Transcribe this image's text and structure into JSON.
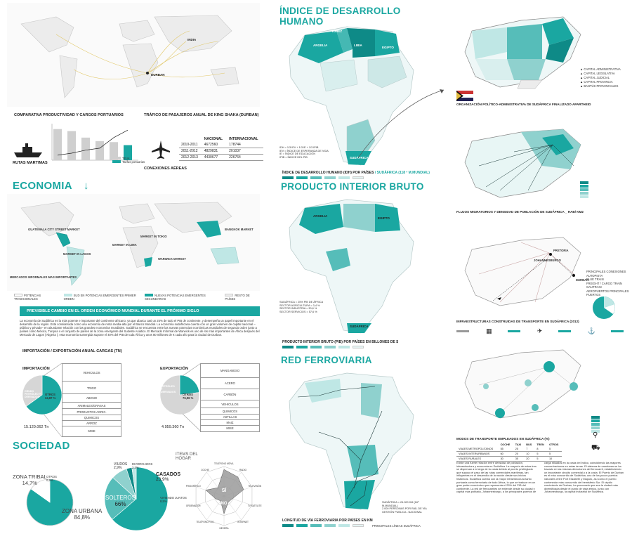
{
  "left": {
    "map_labels": {
      "india": "INDIA",
      "durban": "DURBAN"
    },
    "port_chart": {
      "title": "COMPARATIVA PRODUCTIVIDAD Y CARGOS PORTUARIOS",
      "caption": "RUTAS MARTIMAS",
      "y_unit": "TEUs/h",
      "legend": [
        "TEUs",
        "Tarifas portuarias"
      ]
    },
    "air_table": {
      "title": "TRÁFICO DE PASAJEROS ANUAL DE KING SHAKA (DURBAN)",
      "caption": "CONEXIONES AÉREAS",
      "headers": [
        "",
        "NACIONAL",
        "INTERNACIONAL"
      ],
      "rows": [
        [
          "2010-2011",
          "4672560",
          "178744"
        ],
        [
          "2011-2012",
          "4829831",
          "201037"
        ],
        [
          "2012-2013",
          "4430677",
          "226764"
        ]
      ]
    },
    "economia": {
      "title": "ECONOMIA",
      "arrow": "↓",
      "markets": [
        "GUATEMALA CITY STREET MARKET",
        "MARKET IN LAGOS",
        "MARKET IN LIMA",
        "MARKET IN TOKIO",
        "BANGKOK MARKET",
        "WARWICK MARKET"
      ],
      "footnote": "MERCADOS INFORMALES MAS IMPORTANTES",
      "legend": [
        "POTENCIAS TRADICIONALES",
        "SUD EN POTENCIAS EMERGENTES PRIMER ORDEN",
        "NUEVAS POTENCIAS EMERGENTES SECUNDARIAS",
        "RESTO DE PAÍSES"
      ],
      "banner": "PREVISIBLE CAMBIO EN EL ORDEN ECONÓMICO MUNDIAL DURANTE EL PRÓXIMO SIGLO",
      "text": "La economía de Sudáfrica es la más potente e importante del continente africano, ya que abarca casi un 25% de todo el PIB de continente, y desempeña un papel importante en el desarrollo de la región. Está considerada como una economía de renta media-alta por el Banco Mundial. La economía sudafricana cuenta con un gran volumen de capital nacional –público y privado– en abundante relación con las grandes economías mundiales. Sudáfrica se encuentra entre las nuevas potencias económicas mundiales de segundo orden junto a países como México, Turquía o el conjunto de países de la zona emergente del Sudeste Asiático. El Mercado Informal de Warwick es uno de los más importantes de África después del Mercado de Lagos ( Nigeria ), esta economía sumergida supone el 40% del PIB de toda África y unos 80 millones de € cada año para la ciudad de Durban."
    },
    "import_export": {
      "title": "IMPORTACIÓN / EXPORTACIÓN ANUAL CARGAS (Tn)",
      "importacion": {
        "label": "IMPORTACIÓN",
        "slice_a": "CRUDO PETRÓLEO Y DERIVADOS",
        "slice_b_name": "OTROS",
        "slice_b_pct": "34,87 %",
        "items": [
          "VEHICULOS",
          "TRIGO",
          "ABONO",
          "ANIMALES/GRASAS",
          "PRODUCTOS AGRIC.",
          "QUIMICOS",
          "ARROZ",
          "MISE"
        ],
        "total": "15.120.062 Tn",
        "values": [
          65.13,
          34.87
        ]
      },
      "exportacion": {
        "label": "EXPORTACIÓN",
        "slice_a": "PETRÓLEO Y DERIVADOS",
        "slice_b_name": "OTROS",
        "slice_b_pct": "76,96 %",
        "items": [
          "MANGANESO",
          "ACERO",
          "CARBÓN",
          "VEHICULOS",
          "QUIMICOS",
          "ASTILLAS",
          "MAIZ",
          "MISE"
        ],
        "total": "4.959.360 Tn",
        "values": [
          23.04,
          76.96
        ]
      }
    },
    "sociedad": {
      "title": "SOCIEDAD",
      "zona_tribal": "ZONA TRIBAL",
      "zona_tribal_pct": "14,7%",
      "zona_urbana": "ZONA URBANA",
      "zona_urbana_pct": "84,8%",
      "otros_small": "OTROS",
      "otros_small_pct": "0,5%",
      "urban_values": [
        84.8,
        14.7,
        0.5
      ],
      "viudos": "VIUDOS",
      "viudos_pct": "2,9%",
      "divorciados": "DIVORCIADOS",
      "divorciados_pct": "2,3%",
      "casados": "CASADOS",
      "casados_pct": "23,9%",
      "viviendo": "VIVIENDO JUNTOS",
      "viviendo_pct": "8,5%",
      "solteros": "SOLTEROS",
      "solteros_pct": "66%",
      "civil_values": [
        66,
        23.9,
        8.5,
        2.9,
        2.3
      ],
      "radar_title": "ITEMS DEL HOGAR",
      "radar_labels": [
        "TELÉFONO MÓVIL",
        "RADIO",
        "TELEVISIÓN",
        "TV SATELITE",
        "INTERNET",
        "NEVERA",
        "TELÉFONO FIJO",
        "ORDENADOR",
        "FRIGORÍFICO",
        "COCHE"
      ],
      "si": "SÍ",
      "no": "NO",
      "radar_values": [
        0.9,
        0.8,
        0.7,
        0.3,
        0.25,
        0.6,
        0.2,
        0.3,
        0.65,
        0.35
      ]
    }
  },
  "middle": {
    "idh": {
      "title": "ÍNDICE DE DESARROLLO HUMANO",
      "countries": [
        "TÚNEZ",
        "ARGELIA",
        "LIBIA",
        "EGIPTO",
        "SUDÁFRICA"
      ],
      "notes": "IDH = 1/3 IEV + 1/3 IE + 1/3 IPIB\nIEV = ÍNDICE DE ESPERANZA DE VIDA\nIE = ÍNDICE DE EDUCACIÓN\nIPIB = ÍNDICE DEL PIB",
      "caption": "ÍNDICE DE DESARROLLO HUMANO (IDH) POR PAÍSES",
      "caption_teal": "/ SUDÁFRICA (118 º M.MUNDIAL)"
    },
    "pib": {
      "title": "PRODUCTO INTERIOR BRUTO",
      "countries": [
        "ARGELIA",
        "EGIPTO",
        "SUDÁFRICA"
      ],
      "notes": "SUDÁFRICA = 25% PIB DE ÁFRICA\nSECTOR AGRICULTURA = 3,4 %\nSECTOR INDUSTRIA = 30,6 %\nSECTOR SERVICIOS = 57,6 %",
      "caption": "PRODUCTO INTERIOR BRUTO (PIB)  POR PAÍSES EN BILLONES DE $"
    },
    "rail": {
      "title": "RED FERROVIARIA",
      "notes": "SUDÁFRICA = 24.000 KM (16º M.MUNDIAL)\n2.000 PERSONAS POR RAÍL DE VÍA\nGESTIÓN PUBLICA - NACIONAL",
      "caption": "LONGITUD DE VÍA FERROVIARIA POR PAÍSES EN KM",
      "legend_note": "PRINCIPALES LÍNEAS SUDÁFRICA"
    }
  },
  "right": {
    "org_caption": "ORGANIZACIÓN POLÍTICO-ADMINISTRATIVA DE SUDÁFRICA FINALIZADO APARTHEID",
    "org_legend": [
      "CAPITAL ADMINISTRATIVA",
      "CAPITAL LEGISLATIVA",
      "CAPITAL JUDICIAL",
      "CAPITAL PROVINCIA",
      "BANTÚS PROVINCIALES"
    ],
    "migr_caption": "FLUJOS MIGRATORIOS Y DENSIDAD DE POBLACIÓN DE SUDÁFRICA _ HAB/ KM2",
    "infra_caption": "INFRAESTRUCTURAS CONSTRUIDAS DE TRANSPORTE EN SUDÁFRICA (2012)",
    "infra_legend": [
      "PRINCIPALES CONEXIONES",
      "AUTOPISTA",
      "BLUE TRAIN",
      "FREIGHT / CARGO TRAIN",
      "GAUTRAIN",
      "AEROPUERTOS PRINCIPALES",
      "PUERTOS"
    ],
    "infra_cities": [
      "PRETORIA",
      "JOHANNESBURGO",
      "DURBAN"
    ],
    "modes_caption": "MODOS DE TRANSPORTE EMPLEADOS EN SUDÁFRICA (%)",
    "modes_headers": [
      "",
      "COCHE",
      "TAXI",
      "BUS",
      "TREN",
      "OTROS"
    ],
    "modes_rows": [
      [
        "VIAJES METROPOLITANOS",
        "55",
        "25",
        "7",
        "8",
        "5"
      ],
      [
        "VIAJES INTERURBANOS",
        "60",
        "20",
        "10",
        "5",
        "5"
      ],
      [
        "VIAJES RURALES",
        "30",
        "35",
        "20",
        "5",
        "10"
      ]
    ],
    "text": "Existe una fuerte relación entre densidad de población, infraestructura y economía en Sudáfrica. La mayoría de estas tres se dispersan a lo largo de la costa debido al puerto privilegiado que supuso el paso de las rutas comerciales marítimas, tan influyentes en el desarrollo de la nación desde sus inicios históricos. Sudáfrica cuenta con la mayor infraestructura tanto portuaria como ferroviaria de todo África, lo que se traduce en un gran poder económico que representa el 25% del PIB del continente. La red de ferrocarriles se extiende desde su ciudad y capital más poblada, Johannesburgo, a los principales puertos de carga situados en la costa del Índico, coincidiendo las mayores concentraciones en estas áreas. El sistema de carreteras se ha trazado en las mismas direcciones del ferrocarril, estableciendo un importante circuito comercial y a la costa. El Puerto de Durban es el más concurrido de Sudáfrica, uno de los pocos puertos naturales entre Port Elizabeth y Maputo, así como el puerto contenedor más concurrido del hemisferio Sur. El rápido crecimiento de Durban, ha provocado que sea la ciudad más diversificada desde el punto de vista étnico, junto con Johannesburgo, la capital industrial de Sudáfrica."
  },
  "colors": {
    "teal": "#1aa7a1",
    "teal_dark": "#0e8a87",
    "teal_light": "#bfe7e5",
    "grey": "#bdbdbd"
  }
}
